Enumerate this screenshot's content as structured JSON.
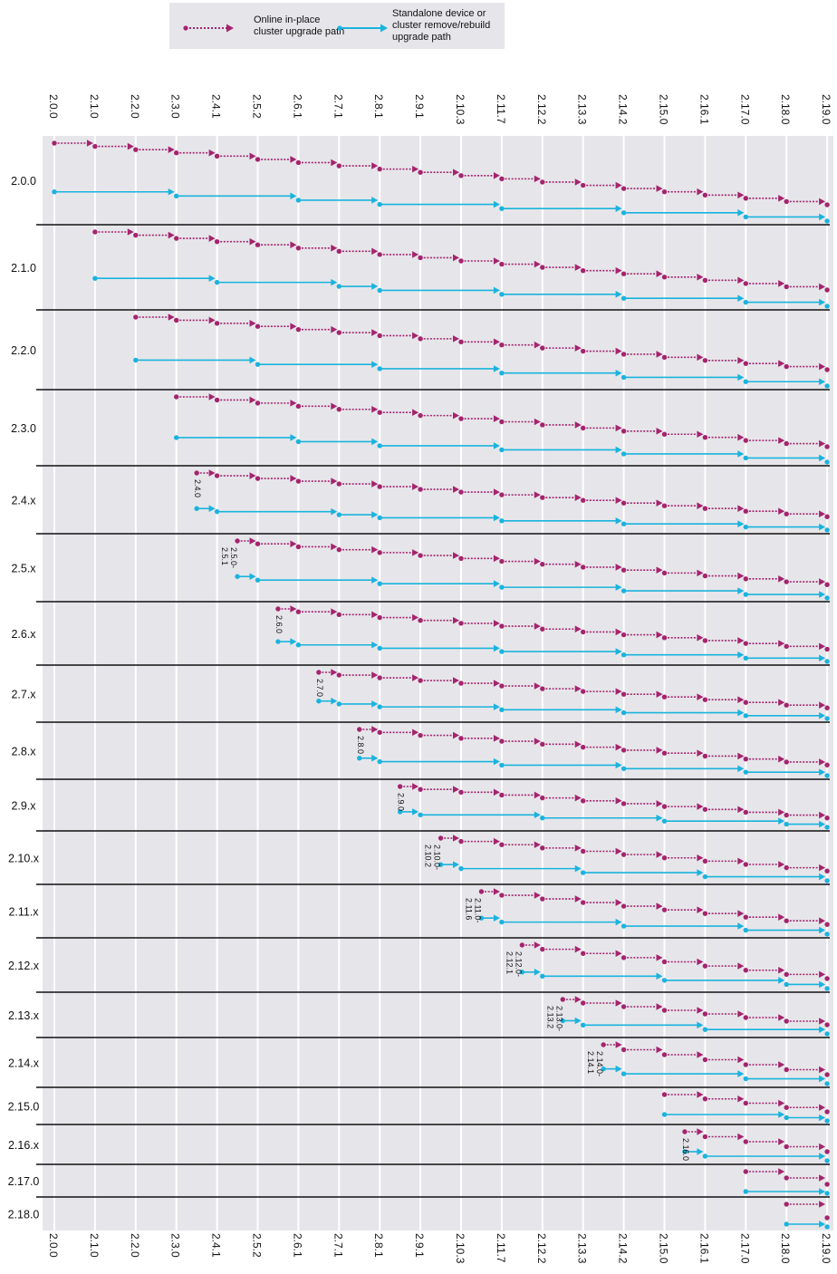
{
  "legend": {
    "inplace_label": "Online in-place\ncluster upgrade path",
    "standalone_label": "Standalone device or\ncluster remove/rebuild\nupgrade path"
  },
  "colors": {
    "inplace": "#a4246e",
    "standalone": "#1ab3dd",
    "background": "#e6e6ea",
    "separator": "#111111",
    "gridline": "#ffffff"
  },
  "versions": [
    "2.0.0",
    "2.1.0",
    "2.2.0",
    "2.3.0",
    "2.4.1",
    "2.5.2",
    "2.6.1",
    "2.7.1",
    "2.8.1",
    "2.9.1",
    "2.10.3",
    "2.11.7",
    "2.12.2",
    "2.13.3",
    "2.14.2",
    "2.15.0",
    "2.16.1",
    "2.17.0",
    "2.18.0",
    "2.19.0"
  ],
  "rows": [
    {
      "label": "2.0.0",
      "start": 0,
      "note": "",
      "standalone": [
        0,
        3,
        6,
        8,
        11,
        14,
        17,
        19
      ]
    },
    {
      "label": "2.1.0",
      "start": 1,
      "note": "",
      "standalone": [
        1,
        4,
        7,
        8,
        11,
        14,
        17,
        19
      ]
    },
    {
      "label": "2.2.0",
      "start": 2,
      "note": "",
      "standalone": [
        2,
        5,
        8,
        11,
        14,
        17,
        19
      ]
    },
    {
      "label": "2.3.0",
      "start": 3,
      "note": "",
      "standalone": [
        3,
        6,
        8,
        11,
        14,
        17,
        19
      ]
    },
    {
      "label": "2.4.x",
      "start": 3.5,
      "note": "2.4.0",
      "standalone": [
        3.5,
        4,
        7,
        8,
        11,
        14,
        17,
        19
      ]
    },
    {
      "label": "2.5.x",
      "start": 4.5,
      "note": "2.5.0-\n2.5.1",
      "standalone": [
        4.5,
        5,
        8,
        11,
        14,
        17,
        19
      ]
    },
    {
      "label": "2.6.x",
      "start": 5.5,
      "note": "2.6.0",
      "standalone": [
        5.5,
        6,
        8,
        11,
        14,
        17,
        19
      ]
    },
    {
      "label": "2.7.x",
      "start": 6.5,
      "note": "2.7.0",
      "standalone": [
        6.5,
        7,
        8,
        11,
        14,
        17,
        19
      ]
    },
    {
      "label": "2.8.x",
      "start": 7.5,
      "note": "2.8.0",
      "standalone": [
        7.5,
        8,
        11,
        14,
        17,
        19
      ]
    },
    {
      "label": "2.9.x",
      "start": 8.5,
      "note": "2.9.0",
      "standalone": [
        8.5,
        9,
        12,
        15,
        18,
        19
      ]
    },
    {
      "label": "2.10.x",
      "start": 9.5,
      "note": "2.10.0-\n2.10.2",
      "standalone": [
        9.5,
        10,
        13,
        16,
        19
      ]
    },
    {
      "label": "2.11.x",
      "start": 10.5,
      "note": "2.11.0-\n2.11.6",
      "standalone": [
        10.5,
        11,
        14,
        17,
        19
      ]
    },
    {
      "label": "2.12.x",
      "start": 11.5,
      "note": "2.12.0-\n2.12.1",
      "standalone": [
        11.5,
        12,
        15,
        18,
        19
      ]
    },
    {
      "label": "2.13.x",
      "start": 12.5,
      "note": "2.13.0-\n2.13.2",
      "standalone": [
        12.5,
        13,
        16,
        19
      ]
    },
    {
      "label": "2.14.x",
      "start": 13.5,
      "note": "2.14.0-\n2.14.1",
      "standalone": [
        13.5,
        14,
        17,
        19
      ]
    },
    {
      "label": "2.15.0",
      "start": 15,
      "note": "",
      "standalone": [
        15,
        18,
        19
      ]
    },
    {
      "label": "2.16.x",
      "start": 15.5,
      "note": "2.16.0",
      "standalone": [
        15.5,
        16,
        19
      ]
    },
    {
      "label": "2.17.0",
      "start": 17,
      "note": "",
      "standalone": [
        17,
        19
      ]
    },
    {
      "label": "2.18.0",
      "start": 18,
      "note": "",
      "standalone": [
        18,
        19
      ]
    }
  ]
}
